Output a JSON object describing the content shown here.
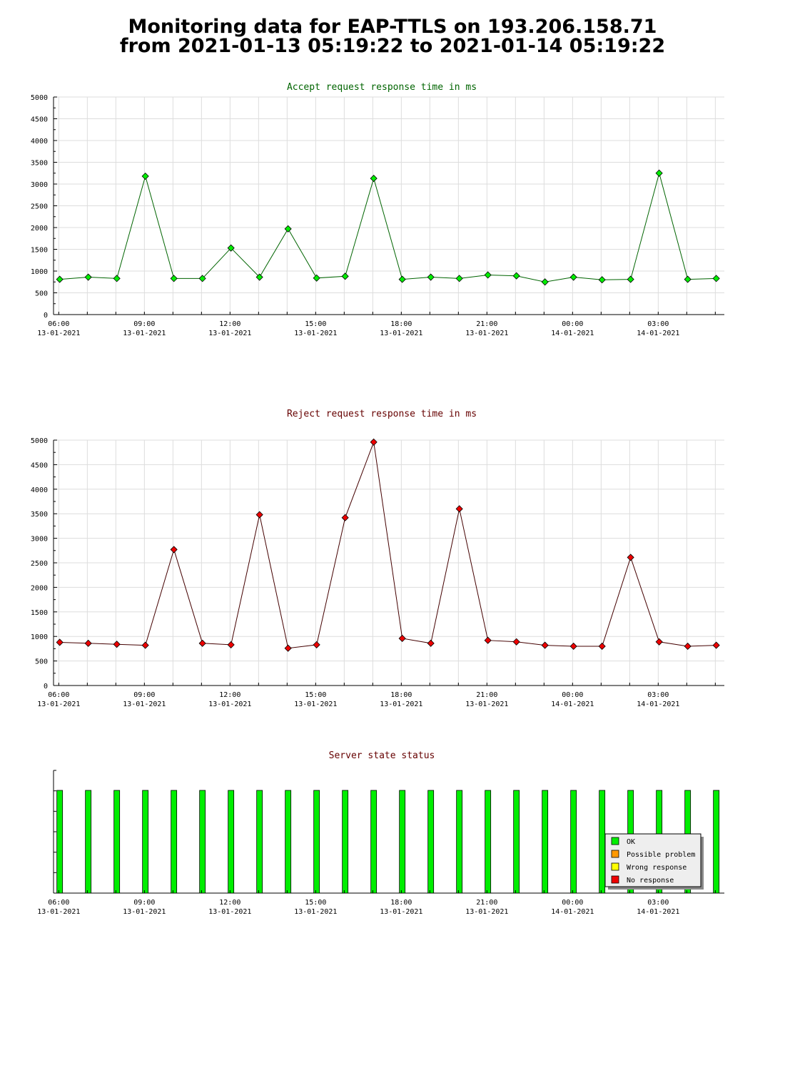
{
  "header": {
    "title_line1": "Monitoring data for EAP-TTLS on 193.206.158.71",
    "title_line2": "from 2021-01-13 05:19:22 to 2021-01-14 05:19:22"
  },
  "colors": {
    "ok": "#00ee00",
    "possible_problem": "#ff9900",
    "wrong_response": "#ffff00",
    "no_response": "#ee0000",
    "accept_line": "#006400",
    "reject_line": "#440000",
    "accept_title": "#006400",
    "reject_title": "#660000",
    "status_title": "#660000",
    "grid": "#dddddd"
  },
  "x_axis_ticks": [
    {
      "time": "06:00",
      "date": "13-01-2021"
    },
    {
      "time": "09:00",
      "date": "13-01-2021"
    },
    {
      "time": "12:00",
      "date": "13-01-2021"
    },
    {
      "time": "15:00",
      "date": "13-01-2021"
    },
    {
      "time": "18:00",
      "date": "13-01-2021"
    },
    {
      "time": "21:00",
      "date": "13-01-2021"
    },
    {
      "time": "00:00",
      "date": "14-01-2021"
    },
    {
      "time": "03:00",
      "date": "14-01-2021"
    }
  ],
  "legend": {
    "ok": "OK",
    "possible_problem": "Possible problem",
    "wrong_response": "Wrong response",
    "no_response": "No response"
  },
  "chart_data": [
    {
      "type": "line",
      "title": "Accept request response time in ms",
      "xlabel": "",
      "ylabel": "",
      "ylim": [
        0,
        5000
      ],
      "y_ticks": [
        0,
        500,
        1000,
        1500,
        2000,
        2500,
        3000,
        3500,
        4000,
        4500,
        5000
      ],
      "x_start": "2021-01-13 05:49",
      "x_end": "2021-01-14 05:19",
      "grid": true,
      "marker_color": "#00ee00",
      "x": [
        "2021-01-13 06:02",
        "2021-01-13 07:02",
        "2021-01-13 08:02",
        "2021-01-13 09:02",
        "2021-01-13 10:02",
        "2021-01-13 11:02",
        "2021-01-13 12:02",
        "2021-01-13 13:02",
        "2021-01-13 14:02",
        "2021-01-13 15:02",
        "2021-01-13 16:02",
        "2021-01-13 17:02",
        "2021-01-13 18:02",
        "2021-01-13 19:02",
        "2021-01-13 20:02",
        "2021-01-13 21:02",
        "2021-01-13 22:02",
        "2021-01-13 23:02",
        "2021-01-14 00:02",
        "2021-01-14 01:02",
        "2021-01-14 02:02",
        "2021-01-14 03:02",
        "2021-01-14 04:02",
        "2021-01-14 05:02"
      ],
      "values": [
        810,
        860,
        830,
        3180,
        830,
        830,
        1530,
        860,
        1970,
        840,
        880,
        3130,
        810,
        860,
        830,
        910,
        890,
        750,
        860,
        800,
        810,
        3250,
        810,
        830
      ]
    },
    {
      "type": "line",
      "title": "Reject request response time in ms",
      "xlabel": "",
      "ylabel": "",
      "ylim": [
        0,
        5000
      ],
      "y_ticks": [
        0,
        500,
        1000,
        1500,
        2000,
        2500,
        3000,
        3500,
        4000,
        4500,
        5000
      ],
      "x_start": "2021-01-13 05:49",
      "x_end": "2021-01-14 05:19",
      "grid": true,
      "marker_color": "#ee0000",
      "x": [
        "2021-01-13 06:02",
        "2021-01-13 07:02",
        "2021-01-13 08:02",
        "2021-01-13 09:02",
        "2021-01-13 10:02",
        "2021-01-13 11:02",
        "2021-01-13 12:02",
        "2021-01-13 13:02",
        "2021-01-13 14:02",
        "2021-01-13 15:02",
        "2021-01-13 16:02",
        "2021-01-13 17:02",
        "2021-01-13 18:02",
        "2021-01-13 19:02",
        "2021-01-13 20:02",
        "2021-01-13 21:02",
        "2021-01-13 22:02",
        "2021-01-13 23:02",
        "2021-01-14 00:02",
        "2021-01-14 01:02",
        "2021-01-14 02:02",
        "2021-01-14 03:02",
        "2021-01-14 04:02",
        "2021-01-14 05:02"
      ],
      "values": [
        880,
        860,
        840,
        820,
        2770,
        860,
        830,
        3480,
        760,
        830,
        3420,
        4960,
        960,
        860,
        3600,
        920,
        890,
        820,
        800,
        800,
        2610,
        890,
        800,
        820
      ]
    },
    {
      "type": "bar",
      "title": "Server state status",
      "xlabel": "",
      "ylabel": "",
      "x_start": "2021-01-13 05:49",
      "x_end": "2021-01-14 05:19",
      "grid": false,
      "legend_position": "bottom-right",
      "x": [
        "2021-01-13 06:02",
        "2021-01-13 07:02",
        "2021-01-13 08:02",
        "2021-01-13 09:02",
        "2021-01-13 10:02",
        "2021-01-13 11:02",
        "2021-01-13 12:02",
        "2021-01-13 13:02",
        "2021-01-13 14:02",
        "2021-01-13 15:02",
        "2021-01-13 16:02",
        "2021-01-13 17:02",
        "2021-01-13 18:02",
        "2021-01-13 19:02",
        "2021-01-13 20:02",
        "2021-01-13 21:02",
        "2021-01-13 22:02",
        "2021-01-13 23:02",
        "2021-01-14 00:02",
        "2021-01-14 01:02",
        "2021-01-14 02:02",
        "2021-01-14 03:02",
        "2021-01-14 04:02",
        "2021-01-14 05:02"
      ],
      "states": [
        "OK",
        "OK",
        "OK",
        "OK",
        "OK",
        "OK",
        "OK",
        "OK",
        "OK",
        "OK",
        "OK",
        "OK",
        "OK",
        "OK",
        "OK",
        "OK",
        "OK",
        "OK",
        "OK",
        "OK",
        "OK",
        "OK",
        "OK",
        "OK"
      ]
    }
  ]
}
